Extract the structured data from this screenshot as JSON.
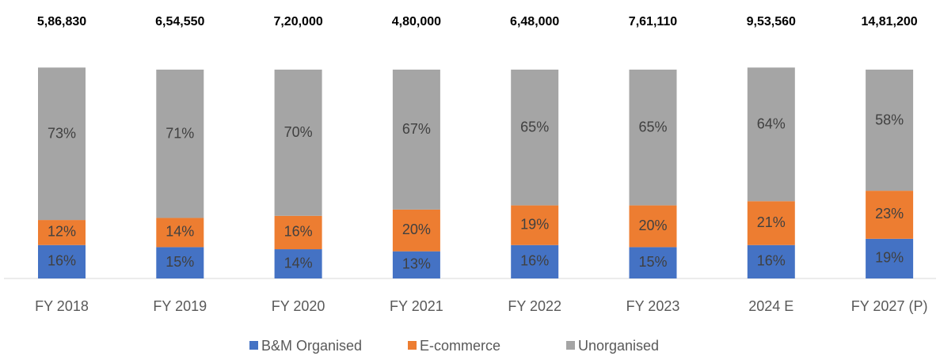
{
  "chart_data": {
    "type": "stacked_bar",
    "categories": [
      "FY 2018",
      "FY 2019",
      "FY 2020",
      "FY 2021",
      "FY 2022",
      "FY 2023",
      "2024 E",
      "FY 2027 (P)"
    ],
    "totals": {
      "values": [
        586830,
        654550,
        720000,
        480000,
        648000,
        761110,
        953560,
        1481200
      ],
      "value_labels": [
        "5,86,830",
        "6,54,550",
        "7,20,000",
        "4,80,000",
        "6,48,000",
        "7,61,110",
        "9,53,560",
        "14,81,200"
      ]
    },
    "series": [
      {
        "name": "B&M Organised",
        "color": "#4472c4",
        "values": [
          16,
          15,
          14,
          13,
          16,
          15,
          16,
          19
        ],
        "value_labels": [
          "16%",
          "15%",
          "14%",
          "13%",
          "16%",
          "15%",
          "16%",
          "19%"
        ]
      },
      {
        "name": "E-commerce",
        "color": "#ed7d31",
        "values": [
          12,
          14,
          16,
          20,
          19,
          20,
          21,
          23
        ],
        "value_labels": [
          "12%",
          "14%",
          "16%",
          "20%",
          "19%",
          "20%",
          "21%",
          "23%"
        ]
      },
      {
        "name": "Unorganised",
        "color": "#a5a5a5",
        "values": [
          73,
          71,
          70,
          67,
          65,
          65,
          64,
          58
        ],
        "value_labels": [
          "73%",
          "71%",
          "70%",
          "67%",
          "65%",
          "65%",
          "64%",
          "58%"
        ]
      }
    ],
    "ylim": [
      0,
      100
    ],
    "legend": "bottom"
  }
}
